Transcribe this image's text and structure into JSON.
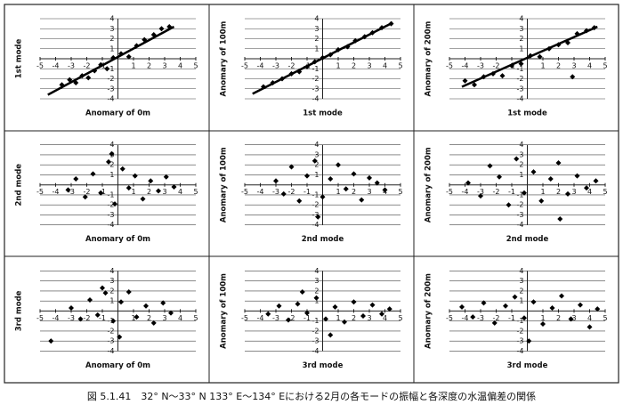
{
  "chart_data": [
    {
      "type": "scatter",
      "x_label": "Anomary of 0m",
      "y_label": "1st mode",
      "color": "#000",
      "grid": true,
      "xlim": [
        -5,
        5
      ],
      "ylim": [
        -4,
        4
      ],
      "xticks": [
        -5,
        -4,
        -3,
        -2,
        -1,
        1,
        2,
        3,
        4,
        5
      ],
      "yticks": [
        -4,
        -3,
        -2,
        -1,
        1,
        2,
        3,
        4
      ],
      "x": [
        -3.6,
        -3.1,
        -2.7,
        -2.3,
        -1.9,
        -1.5,
        -1.1,
        -0.7,
        -0.3,
        0.2,
        0.7,
        1.2,
        1.7,
        2.3,
        2.8,
        3.3
      ],
      "values": [
        -2.6,
        -2.1,
        -2.4,
        -1.7,
        -1.9,
        -1.2,
        -0.6,
        -1.0,
        0.1,
        0.5,
        0.2,
        1.3,
        1.9,
        2.4,
        3.0,
        3.2
      ],
      "trend": {
        "x": [
          -4.5,
          3.6
        ],
        "values": [
          -3.6,
          3.2
        ]
      }
    },
    {
      "type": "scatter",
      "x_label": "1st mode",
      "y_label": "Anomary of 100m",
      "color": "#000",
      "grid": true,
      "xlim": [
        -5,
        5
      ],
      "ylim": [
        -4,
        4
      ],
      "xticks": [
        -5,
        -4,
        -3,
        -2,
        -1,
        1,
        2,
        3,
        4,
        5
      ],
      "yticks": [
        -4,
        -3,
        -2,
        -1,
        1,
        2,
        3,
        4
      ],
      "x": [
        -3.8,
        -3.2,
        -2.6,
        -2.0,
        -1.5,
        -1.0,
        -0.5,
        0,
        0.5,
        1.0,
        1.6,
        2.1,
        2.7,
        3.2,
        3.8,
        4.4
      ],
      "values": [
        -2.8,
        -2.4,
        -2.0,
        -1.5,
        -1.3,
        -0.8,
        -0.3,
        0.1,
        0.4,
        0.9,
        1.2,
        1.8,
        2.2,
        2.6,
        3.1,
        3.5
      ],
      "trend": {
        "x": [
          -4.5,
          4.5
        ],
        "values": [
          -3.5,
          3.6
        ]
      }
    },
    {
      "type": "scatter",
      "x_label": "1st mode",
      "y_label": "Anomary of 200m",
      "color": "#000",
      "grid": true,
      "xlim": [
        -5,
        5
      ],
      "ylim": [
        -4,
        4
      ],
      "xticks": [
        -5,
        -4,
        -3,
        -2,
        -1,
        1,
        2,
        3,
        4,
        5
      ],
      "yticks": [
        -4,
        -3,
        -2,
        -1,
        1,
        2,
        3,
        4
      ],
      "x": [
        -4.0,
        -3.4,
        -2.8,
        -2.2,
        -1.6,
        -1.0,
        -0.4,
        0.2,
        0.8,
        1.4,
        2.0,
        2.6,
        3.2,
        3.8,
        4.3,
        2.9
      ],
      "values": [
        -2.2,
        -2.6,
        -1.8,
        -1.5,
        -1.7,
        -0.7,
        -0.5,
        0.3,
        0.2,
        1.0,
        1.4,
        1.6,
        2.5,
        2.8,
        3.1,
        -1.8
      ],
      "trend": {
        "x": [
          -4.2,
          4.5
        ],
        "values": [
          -2.8,
          3.2
        ]
      }
    },
    {
      "type": "scatter",
      "x_label": "Anomary of 0m",
      "y_label": "2nd mode",
      "color": "#000",
      "grid": true,
      "xlim": [
        -5,
        5
      ],
      "ylim": [
        -4,
        4
      ],
      "xticks": [
        -5,
        -4,
        -3,
        -2,
        -1,
        1,
        2,
        3,
        4,
        5
      ],
      "yticks": [
        -4,
        -3,
        -2,
        -1,
        1,
        2,
        3,
        4
      ],
      "x": [
        -3.2,
        -2.7,
        -2.1,
        -1.6,
        -1.1,
        -0.6,
        -0.2,
        0.3,
        0.7,
        1.1,
        1.6,
        2.1,
        2.6,
        3.1,
        3.6,
        -0.4
      ],
      "values": [
        -0.5,
        0.6,
        -1.2,
        1.1,
        -0.8,
        2.3,
        -1.9,
        1.6,
        -0.3,
        0.9,
        -1.4,
        0.4,
        -0.6,
        0.8,
        -0.2,
        3.1
      ]
    },
    {
      "type": "scatter",
      "x_label": "2nd mode",
      "y_label": "Anomary of 100m",
      "color": "#000",
      "grid": true,
      "xlim": [
        -5,
        5
      ],
      "ylim": [
        -4,
        4
      ],
      "xticks": [
        -5,
        -4,
        -3,
        -2,
        -1,
        1,
        2,
        3,
        4,
        5
      ],
      "yticks": [
        -4,
        -3,
        -2,
        -1,
        1,
        2,
        3,
        4
      ],
      "x": [
        -3.0,
        -2.5,
        -2.0,
        -1.5,
        -1.0,
        -0.5,
        0,
        0.5,
        1.0,
        1.5,
        2.0,
        2.5,
        3.0,
        3.5,
        4.0,
        -0.3
      ],
      "values": [
        0.4,
        -0.9,
        1.8,
        -1.6,
        0.9,
        2.4,
        -1.2,
        0.6,
        2.0,
        -0.4,
        1.1,
        -1.5,
        0.7,
        0.2,
        -0.5,
        -3.2
      ]
    },
    {
      "type": "scatter",
      "x_label": "2nd mode",
      "y_label": "Anomary of 200m",
      "color": "#000",
      "grid": true,
      "xlim": [
        -5,
        5
      ],
      "ylim": [
        -4,
        4
      ],
      "xticks": [
        -5,
        -4,
        -3,
        -2,
        -1,
        1,
        2,
        3,
        4,
        5
      ],
      "yticks": [
        -4,
        -3,
        -2,
        -1,
        1,
        2,
        3,
        4
      ],
      "x": [
        -3.8,
        -3.0,
        -2.4,
        -1.8,
        -1.2,
        -0.7,
        -0.2,
        0.4,
        0.9,
        1.5,
        2.0,
        2.6,
        3.2,
        3.8,
        4.4,
        2.1
      ],
      "values": [
        0.2,
        -1.1,
        1.9,
        0.8,
        -2.0,
        2.6,
        -0.8,
        1.3,
        -1.6,
        0.6,
        2.2,
        -0.9,
        0.9,
        -0.3,
        0.4,
        -3.4
      ]
    },
    {
      "type": "scatter",
      "x_label": "Anomary of 0m",
      "y_label": "3rd mode",
      "color": "#000",
      "grid": true,
      "xlim": [
        -5,
        5
      ],
      "ylim": [
        -4,
        4
      ],
      "xticks": [
        -5,
        -4,
        -3,
        -2,
        -1,
        1,
        2,
        3,
        4,
        5
      ],
      "yticks": [
        -4,
        -3,
        -2,
        -1,
        1,
        2,
        3,
        4
      ],
      "x": [
        -4.3,
        -3.0,
        -2.4,
        -1.8,
        -1.3,
        -0.8,
        -0.3,
        0.2,
        0.7,
        1.2,
        1.8,
        2.3,
        2.9,
        3.4,
        0.1,
        -1.0
      ],
      "values": [
        -3.0,
        0.3,
        -0.8,
        1.1,
        -0.4,
        1.8,
        -1.0,
        0.9,
        1.9,
        -0.6,
        0.5,
        -1.2,
        0.8,
        -0.2,
        -2.6,
        2.3
      ]
    },
    {
      "type": "scatter",
      "x_label": "3rd mode",
      "y_label": "Anomary of 100m",
      "color": "#000",
      "grid": true,
      "xlim": [
        -5,
        5
      ],
      "ylim": [
        -4,
        4
      ],
      "xticks": [
        -5,
        -4,
        -3,
        -2,
        -1,
        1,
        2,
        3,
        4,
        5
      ],
      "yticks": [
        -4,
        -3,
        -2,
        -1,
        1,
        2,
        3,
        4
      ],
      "x": [
        -3.5,
        -2.8,
        -2.2,
        -1.6,
        -1.0,
        -0.4,
        0.2,
        0.8,
        1.4,
        2.0,
        2.6,
        3.2,
        3.8,
        4.3,
        -1.3,
        0.5
      ],
      "values": [
        -0.3,
        0.5,
        -0.9,
        0.7,
        -0.2,
        1.3,
        -0.8,
        0.4,
        -1.1,
        0.9,
        -0.5,
        0.6,
        -0.3,
        0.2,
        1.9,
        -2.4
      ]
    },
    {
      "type": "scatter",
      "x_label": "3rd mode",
      "y_label": "Anomary of 200m",
      "color": "#000",
      "grid": true,
      "xlim": [
        -5,
        5
      ],
      "ylim": [
        -4,
        4
      ],
      "xticks": [
        -5,
        -4,
        -3,
        -2,
        -1,
        1,
        2,
        3,
        4,
        5
      ],
      "yticks": [
        -4,
        -3,
        -2,
        -1,
        1,
        2,
        3,
        4
      ],
      "x": [
        -4.2,
        -3.5,
        -2.8,
        -2.1,
        -1.4,
        -0.8,
        -0.2,
        0.4,
        1.0,
        1.6,
        2.2,
        2.8,
        3.4,
        4.0,
        4.5,
        0.1
      ],
      "values": [
        0.4,
        -0.6,
        0.8,
        -1.2,
        0.5,
        1.4,
        -0.7,
        0.9,
        -1.3,
        0.3,
        1.5,
        -0.8,
        0.6,
        -1.6,
        0.2,
        -3.0
      ]
    }
  ],
  "caption": "図 5.1.41　32° N～33° N 133° E～134° Eにおける2月の各モードの振幅と各深度の水温偏差の関係"
}
